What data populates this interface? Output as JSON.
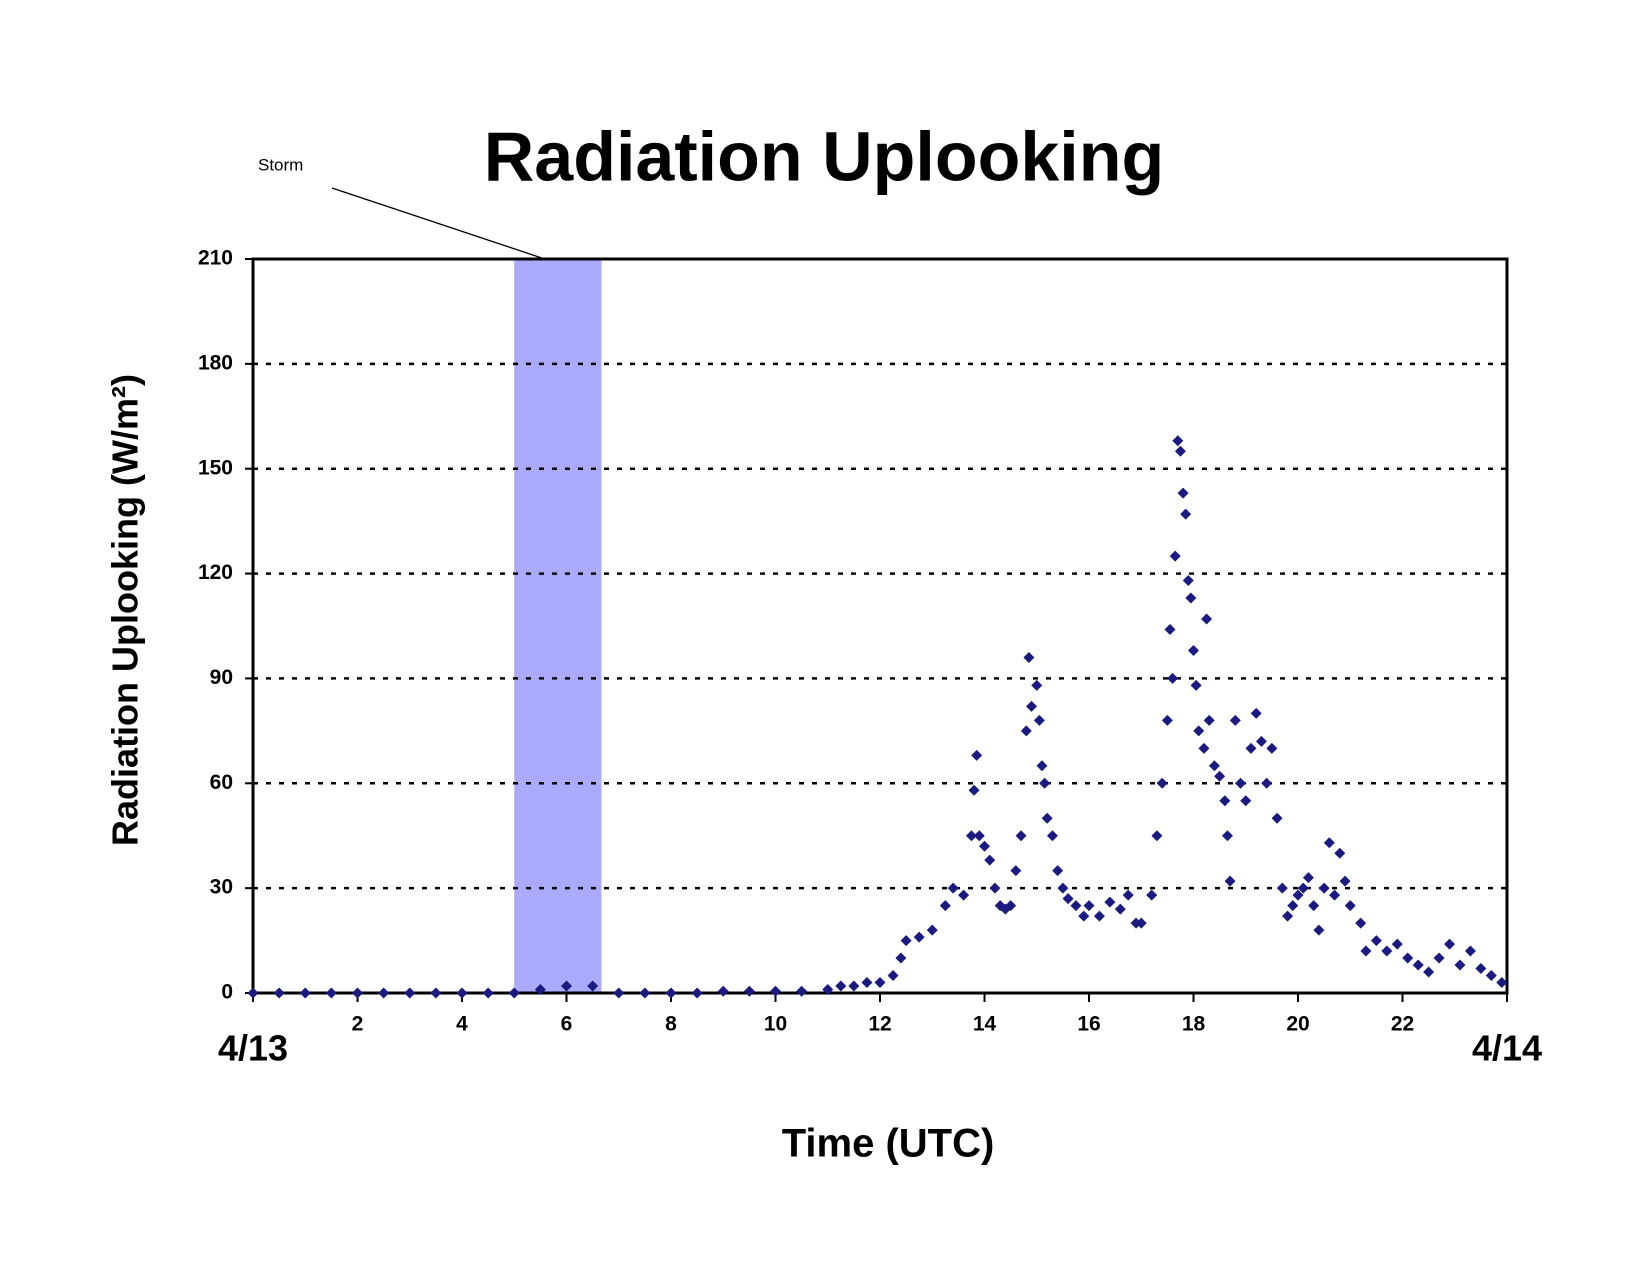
{
  "chart_data": {
    "type": "scatter",
    "title": "Radiation Uplooking",
    "xlabel": "Time (UTC)",
    "ylabel": "Radiation Uplooking (W/m²)",
    "xlim": [
      0,
      24
    ],
    "ylim": [
      0,
      210
    ],
    "xticks": [
      {
        "value": 0,
        "label": "4/13"
      },
      2,
      4,
      6,
      8,
      10,
      12,
      14,
      16,
      18,
      20,
      22,
      {
        "value": 24,
        "label": "4/14"
      }
    ],
    "yticks": [
      0,
      30,
      60,
      90,
      120,
      150,
      180,
      210
    ],
    "grid": true,
    "color": "#1a1a80",
    "span": {
      "label": "Storm",
      "x": [
        5.0,
        6.67
      ],
      "color": "#aaaaff"
    },
    "x": [
      0,
      0.5,
      1,
      1.5,
      2,
      2.5,
      3,
      3.5,
      4,
      4.5,
      5,
      5.5,
      6,
      6.5,
      7,
      7.5,
      8,
      8.5,
      9,
      9.5,
      10,
      10.5,
      11,
      11.25,
      11.5,
      11.75,
      12,
      12.25,
      12.4,
      12.5,
      12.75,
      13,
      13.25,
      13.4,
      13.6,
      13.75,
      13.8,
      13.85,
      13.9,
      14.0,
      14.1,
      14.2,
      14.3,
      14.4,
      14.5,
      14.6,
      14.7,
      14.8,
      14.85,
      14.9,
      15.0,
      15.05,
      15.1,
      15.15,
      15.2,
      15.3,
      15.4,
      15.5,
      15.6,
      15.75,
      15.9,
      16.0,
      16.2,
      16.4,
      16.6,
      16.75,
      16.9,
      17.0,
      17.2,
      17.3,
      17.4,
      17.5,
      17.55,
      17.6,
      17.65,
      17.7,
      17.75,
      17.8,
      17.85,
      17.9,
      17.95,
      18.0,
      18.05,
      18.1,
      18.2,
      18.25,
      18.3,
      18.4,
      18.5,
      18.6,
      18.65,
      18.7,
      18.8,
      18.9,
      19.0,
      19.1,
      19.2,
      19.3,
      19.4,
      19.5,
      19.6,
      19.7,
      19.8,
      19.9,
      20.0,
      20.1,
      20.2,
      20.3,
      20.4,
      20.5,
      20.6,
      20.7,
      20.8,
      20.9,
      21.0,
      21.2,
      21.3,
      21.5,
      21.7,
      21.9,
      22.1,
      22.3,
      22.5,
      22.7,
      22.9,
      23.1,
      23.3,
      23.5,
      23.7,
      23.9
    ],
    "values": [
      0,
      0,
      0,
      0,
      0,
      0,
      0,
      0,
      0,
      0,
      0,
      1,
      2,
      2,
      0,
      0,
      0,
      0,
      0.5,
      0.5,
      0.5,
      0.5,
      1,
      2,
      2,
      3,
      3,
      5,
      10,
      15,
      16,
      18,
      25,
      30,
      28,
      45,
      58,
      68,
      45,
      42,
      38,
      30,
      25,
      24,
      25,
      35,
      45,
      75,
      96,
      82,
      88,
      78,
      65,
      60,
      50,
      45,
      35,
      30,
      27,
      25,
      22,
      25,
      22,
      26,
      24,
      28,
      20,
      20,
      28,
      45,
      60,
      78,
      104,
      90,
      125,
      158,
      155,
      143,
      137,
      118,
      113,
      98,
      88,
      75,
      70,
      107,
      78,
      65,
      62,
      55,
      45,
      32,
      78,
      60,
      55,
      70,
      80,
      72,
      60,
      70,
      50,
      30,
      22,
      25,
      28,
      30,
      33,
      25,
      18,
      30,
      43,
      28,
      40,
      32,
      25,
      20,
      12,
      15,
      12,
      14,
      10,
      8,
      6,
      10,
      14,
      8,
      12,
      7,
      5,
      3
    ]
  }
}
